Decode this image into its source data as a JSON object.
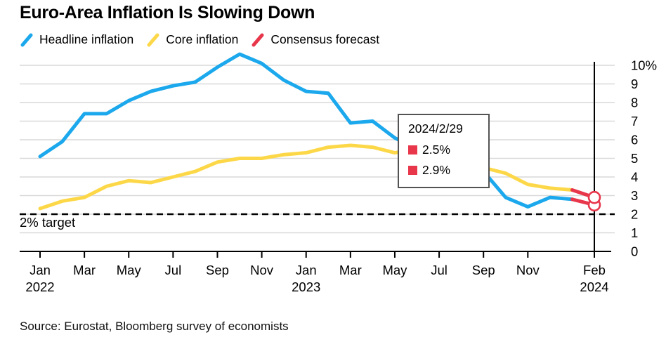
{
  "title": "Euro-Area Inflation Is Slowing Down",
  "legend": {
    "items": [
      {
        "label": "Headline inflation",
        "color": "#1ba8ec"
      },
      {
        "label": "Core inflation",
        "color": "#fcd849"
      },
      {
        "label": "Consensus forecast",
        "color": "#e8364b"
      }
    ]
  },
  "tooltip": {
    "date": "2024/2/29",
    "swatch_color": "#e8364b",
    "rows": [
      {
        "value": "2.5%"
      },
      {
        "value": "2.9%"
      }
    ]
  },
  "annotations": {
    "target_label": "2% target"
  },
  "source": "Source: Eurostat, Bloomberg survey of economists",
  "chart_data": {
    "type": "line",
    "title": "Euro-Area Inflation Is Slowing Down",
    "grid": true,
    "grid_color": "#d9d9d9",
    "axis_color": "#000000",
    "x_axis": {
      "unit": "months since Jan 2022",
      "ticks": [
        {
          "m": 0,
          "label": "Jan",
          "year": "2022"
        },
        {
          "m": 2,
          "label": "Mar"
        },
        {
          "m": 4,
          "label": "May"
        },
        {
          "m": 6,
          "label": "Jul"
        },
        {
          "m": 8,
          "label": "Sep"
        },
        {
          "m": 10,
          "label": "Nov"
        },
        {
          "m": 12,
          "label": "Jan",
          "year": "2023"
        },
        {
          "m": 14,
          "label": "Mar"
        },
        {
          "m": 16,
          "label": "May"
        },
        {
          "m": 18,
          "label": "Jul"
        },
        {
          "m": 20,
          "label": "Sep"
        },
        {
          "m": 22,
          "label": "Nov"
        },
        {
          "m": 25,
          "label": "Feb",
          "year": "2024"
        }
      ]
    },
    "y_axis": {
      "min": 0,
      "max": 10,
      "ticks": [
        {
          "v": 0,
          "label": "0"
        },
        {
          "v": 1,
          "label": "1"
        },
        {
          "v": 2,
          "label": "2"
        },
        {
          "v": 3,
          "label": "3"
        },
        {
          "v": 4,
          "label": "4"
        },
        {
          "v": 5,
          "label": "5"
        },
        {
          "v": 6,
          "label": "6"
        },
        {
          "v": 7,
          "label": "7"
        },
        {
          "v": 8,
          "label": "8"
        },
        {
          "v": 9,
          "label": "9"
        },
        {
          "v": 10,
          "label": "10%"
        }
      ]
    },
    "target_line": {
      "value": 2,
      "label": "2% target",
      "style": "dashed",
      "color": "#000000"
    },
    "forecast_marker_x": 25,
    "series": [
      {
        "name": "Headline inflation",
        "color": "#1ba8ec",
        "x_start": 0,
        "values": [
          5.1,
          5.9,
          7.4,
          7.4,
          8.1,
          8.6,
          8.9,
          9.1,
          9.9,
          10.6,
          10.1,
          9.2,
          8.6,
          8.5,
          6.9,
          7.0,
          6.1,
          5.5,
          5.3,
          5.2,
          4.3,
          2.9,
          2.4,
          2.9,
          2.8
        ]
      },
      {
        "name": "Core inflation",
        "color": "#fcd849",
        "x_start": 0,
        "values": [
          2.3,
          2.7,
          2.9,
          3.5,
          3.8,
          3.7,
          4.0,
          4.3,
          4.8,
          5.0,
          5.0,
          5.2,
          5.3,
          5.6,
          5.7,
          5.6,
          5.3,
          5.5,
          5.5,
          5.3,
          4.5,
          4.2,
          3.6,
          3.4,
          3.3
        ]
      },
      {
        "name": "Consensus forecast (headline)",
        "color": "#e8364b",
        "x_start": 24,
        "values": [
          2.8,
          2.5
        ],
        "endpoint_circle": true
      },
      {
        "name": "Consensus forecast (core)",
        "color": "#e8364b",
        "x_start": 24,
        "values": [
          3.3,
          2.9
        ],
        "endpoint_circle": true
      }
    ]
  }
}
